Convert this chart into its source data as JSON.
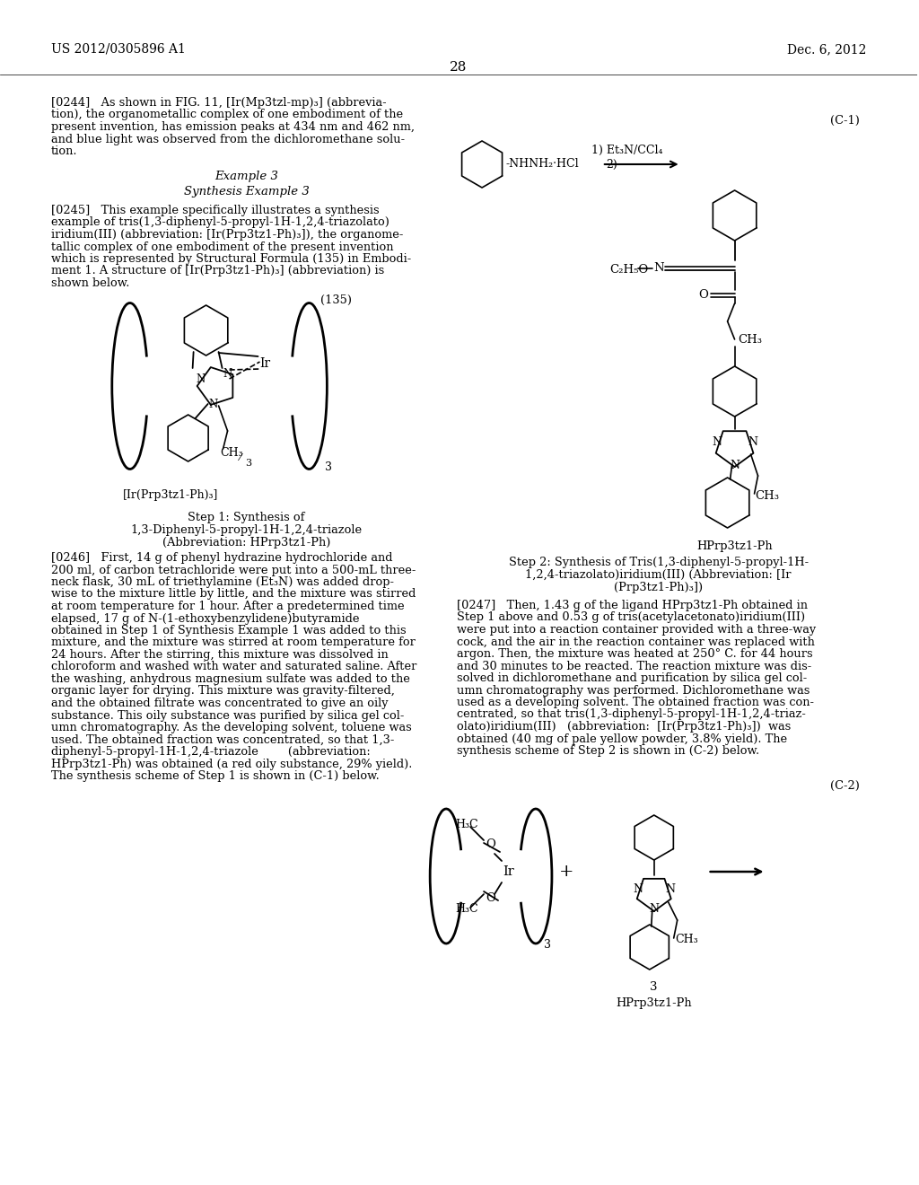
{
  "page_number": "28",
  "header_left": "US 2012/0305896 A1",
  "header_right": "Dec. 6, 2012",
  "p0244": "[0244]   As shown in FIG. 11, [Ir(Mp3tzl-mp)₃] (abbrevia-\ntion), the organometallic complex of one embodiment of the\npresent invention, has emission peaks at 434 nm and 462 nm,\nand blue light was observed from the dichloromethane solu-\ntion.",
  "example3": "Example 3",
  "synthesis_ex3": "Synthesis Example 3",
  "p0245": "[0245]   This example specifically illustrates a synthesis\nexample of tris(1,3-diphenyl-5-propyl-1H-1,2,4-triazolato)\niridium(III) (abbreviation: [Ir(Prp3tz1-Ph)₃]), the organome-\ntallic complex of one embodiment of the present invention\nwhich is represented by Structural Formula (135) in Embodi-\nment 1. A structure of [Ir(Prp3tz1-Ph)₃] (abbreviation) is\nshown below.",
  "formula_135": "(135)",
  "label_135": "[Ir(Prp3tz1-Ph)₃]",
  "step1_line1": "Step 1: Synthesis of",
  "step1_line2": "1,3-Diphenyl-5-propyl-1H-1,2,4-triazole",
  "step1_line3": "(Abbreviation: HPrp3tz1-Ph)",
  "p0246": "[0246]   First, 14 g of phenyl hydrazine hydrochloride and\n200 ml, of carbon tetrachloride were put into a 500-mL three-\nneck flask, 30 mL of triethylamine (Et₃N) was added drop-\nwise to the mixture little by little, and the mixture was stirred\nat room temperature for 1 hour. After a predetermined time\nelapsed, 17 g of N-(1-ethoxybenzylidene)butyramide\nobtained in Step 1 of Synthesis Example 1 was added to this\nmixture, and the mixture was stirred at room temperature for\n24 hours. After the stirring, this mixture was dissolved in\nchloroform and washed with water and saturated saline. After\nthe washing, anhydrous magnesium sulfate was added to the\norganic layer for drying. This mixture was gravity-filtered,\nand the obtained filtrate was concentrated to give an oily\nsubstance. This oily substance was purified by silica gel col-\numn chromatography. As the developing solvent, toluene was\nused. The obtained fraction was concentrated, so that 1,3-\ndiphenyl-5-propyl-1H-1,2,4-triazole        (abbreviation:\nHPrp3tz1-Ph) was obtained (a red oily substance, 29% yield).\nThe synthesis scheme of Step 1 is shown in (C-1) below.",
  "c1_label": "(C-1)",
  "hprp_label": "HPrp3tz1-Ph",
  "step2_line1": "Step 2: Synthesis of Tris(1,3-diphenyl-5-propyl-1H-",
  "step2_line2": "1,2,4-triazolato)iridium(III) (Abbreviation: [Ir",
  "step2_line3": "(Prp3tz1-Ph)₃])",
  "p0247": "[0247]   Then, 1.43 g of the ligand HPrp3tz1-Ph obtained in\nStep 1 above and 0.53 g of tris(acetylacetonato)iridium(III)\nwere put into a reaction container provided with a three-way\ncock, and the air in the reaction container was replaced with\nargon. Then, the mixture was heated at 250° C. for 44 hours\nand 30 minutes to be reacted. The reaction mixture was dis-\nsolved in dichloromethane and purification by silica gel col-\numn chromatography was performed. Dichloromethane was\nused as a developing solvent. The obtained fraction was con-\ncentrated, so that tris(1,3-diphenyl-5-propyl-1H-1,2,4-triaz-\nolato)iridium(III)   (abbreviation:  [Ir(Prp3tz1-Ph)₃])  was\nobtained (40 mg of pale yellow powder, 3.8% yield). The\nsynthesis scheme of Step 2 is shown in (C-2) below.",
  "c2_label": "(C-2)",
  "label_3": "3",
  "hprp_label2": "HPrp3tz1-Ph"
}
